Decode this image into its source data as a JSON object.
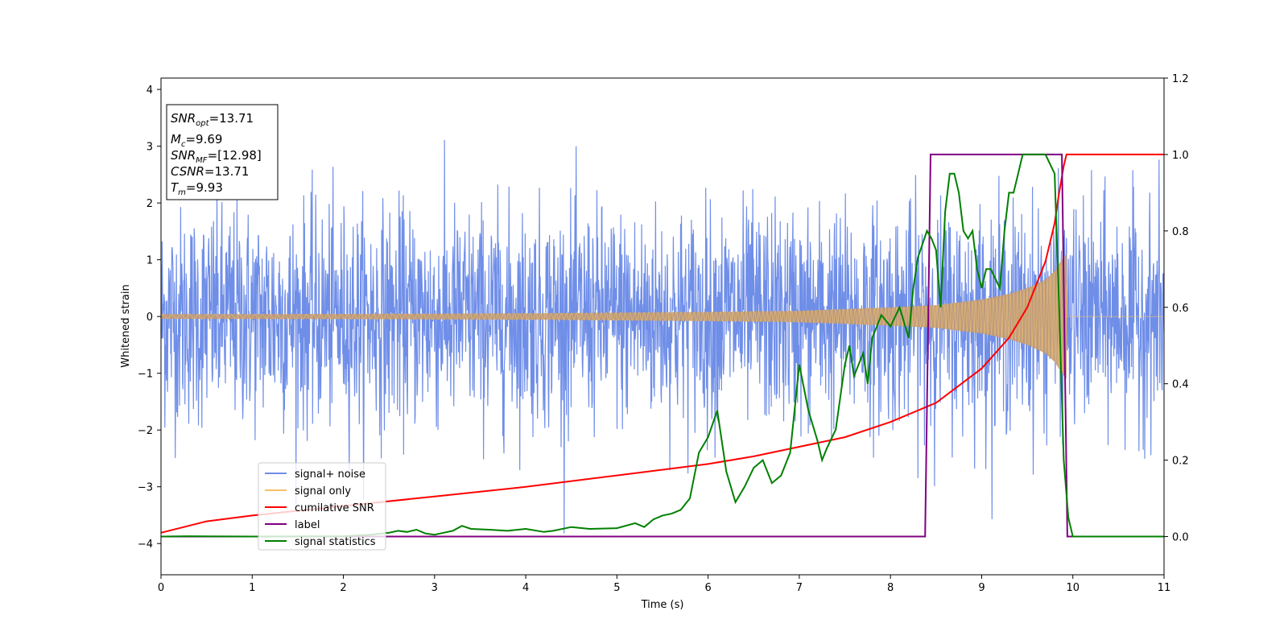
{
  "chart_data": {
    "type": "line",
    "xlabel": "Time (s)",
    "ylabel": "Whitened strain",
    "xlim": [
      0,
      11
    ],
    "ylim_left": [
      -4.55,
      4.2
    ],
    "ylim_right": [
      -0.1,
      1.2
    ],
    "x_ticks": [
      "0",
      "1",
      "2",
      "3",
      "4",
      "5",
      "6",
      "7",
      "8",
      "9",
      "10",
      "11"
    ],
    "y_ticks_left": [
      "−4",
      "−3",
      "−2",
      "−1",
      "0",
      "1",
      "2",
      "3",
      "4"
    ],
    "y_ticks_right": [
      "0.0",
      "0.2",
      "0.4",
      "0.6",
      "0.8",
      "1.0",
      "1.2"
    ],
    "legend_location": "lower-left",
    "grid": false,
    "annotation": {
      "snr_opt": "=13.71",
      "mc": "=9.69",
      "snr_mf": "=[12.98]",
      "csnr": "=13.71",
      "tm": "=9.93"
    },
    "series": [
      {
        "name": "signal+ noise",
        "color": "#6f8ee8",
        "axis": "left",
        "description_values": {
          "noise_std": 0.95,
          "x_range": [
            0,
            11
          ]
        }
      },
      {
        "name": "signal only",
        "color": "#f5c06a",
        "axis": "left",
        "envelope": {
          "x": [
            0,
            2,
            4,
            6,
            7,
            8,
            8.5,
            9,
            9.3,
            9.5,
            9.7,
            9.8,
            9.88,
            9.93,
            9.94,
            11
          ],
          "amp": [
            0.04,
            0.045,
            0.055,
            0.08,
            0.1,
            0.16,
            0.2,
            0.3,
            0.4,
            0.5,
            0.65,
            0.8,
            1.0,
            1.1,
            0,
            0
          ]
        }
      },
      {
        "name": "cumilative SNR",
        "color": "#ff0000",
        "axis": "right",
        "x": [
          0,
          0.5,
          1,
          2,
          3,
          4,
          5,
          6,
          6.5,
          7,
          7.5,
          8,
          8.5,
          9,
          9.3,
          9.5,
          9.7,
          9.8,
          9.85,
          9.9,
          9.93,
          11
        ],
        "y": [
          0.01,
          0.04,
          0.055,
          0.08,
          0.105,
          0.13,
          0.16,
          0.19,
          0.21,
          0.235,
          0.26,
          0.3,
          0.35,
          0.44,
          0.52,
          0.6,
          0.72,
          0.82,
          0.9,
          0.97,
          1.0,
          1.0
        ]
      },
      {
        "name": "label",
        "color": "#800080",
        "axis": "right",
        "x": [
          0,
          8.38,
          8.44,
          9.88,
          9.94,
          11
        ],
        "y": [
          0,
          0,
          1,
          1,
          0,
          0
        ]
      },
      {
        "name": "signal statistics",
        "color": "#008000",
        "axis": "right",
        "x": [
          0,
          0.3,
          1,
          2,
          2.3,
          2.5,
          2.6,
          2.7,
          2.8,
          2.9,
          3.0,
          3.1,
          3.2,
          3.3,
          3.4,
          3.6,
          3.8,
          4.0,
          4.2,
          4.3,
          4.5,
          4.7,
          5.0,
          5.2,
          5.3,
          5.4,
          5.5,
          5.6,
          5.7,
          5.8,
          5.9,
          6.0,
          6.1,
          6.2,
          6.3,
          6.4,
          6.5,
          6.6,
          6.7,
          6.8,
          6.9,
          7.0,
          7.1,
          7.2,
          7.25,
          7.3,
          7.4,
          7.5,
          7.55,
          7.6,
          7.7,
          7.75,
          7.8,
          7.9,
          8.0,
          8.1,
          8.2,
          8.25,
          8.3,
          8.4,
          8.45,
          8.5,
          8.55,
          8.6,
          8.65,
          8.7,
          8.75,
          8.8,
          8.85,
          8.9,
          8.95,
          9.0,
          9.05,
          9.1,
          9.2,
          9.25,
          9.3,
          9.35,
          9.4,
          9.45,
          9.5,
          9.6,
          9.7,
          9.8,
          9.85,
          9.9,
          9.95,
          10.0,
          10.1,
          10.5,
          11
        ],
        "y": [
          0,
          0.001,
          0,
          0.001,
          0.005,
          0.01,
          0.015,
          0.012,
          0.018,
          0.008,
          0.005,
          0.01,
          0.015,
          0.028,
          0.02,
          0.018,
          0.015,
          0.02,
          0.012,
          0.015,
          0.025,
          0.02,
          0.022,
          0.035,
          0.025,
          0.045,
          0.055,
          0.06,
          0.07,
          0.1,
          0.22,
          0.26,
          0.33,
          0.17,
          0.09,
          0.13,
          0.18,
          0.2,
          0.14,
          0.16,
          0.22,
          0.45,
          0.33,
          0.25,
          0.2,
          0.23,
          0.28,
          0.45,
          0.5,
          0.42,
          0.48,
          0.4,
          0.52,
          0.58,
          0.55,
          0.6,
          0.52,
          0.65,
          0.73,
          0.8,
          0.78,
          0.75,
          0.6,
          0.85,
          0.95,
          0.95,
          0.9,
          0.8,
          0.78,
          0.8,
          0.7,
          0.65,
          0.7,
          0.7,
          0.65,
          0.8,
          0.9,
          0.9,
          0.95,
          1.0,
          1.0,
          1.0,
          1.0,
          0.95,
          0.6,
          0.2,
          0.05,
          0.0,
          0.0,
          0.0,
          0.0
        ]
      }
    ]
  }
}
